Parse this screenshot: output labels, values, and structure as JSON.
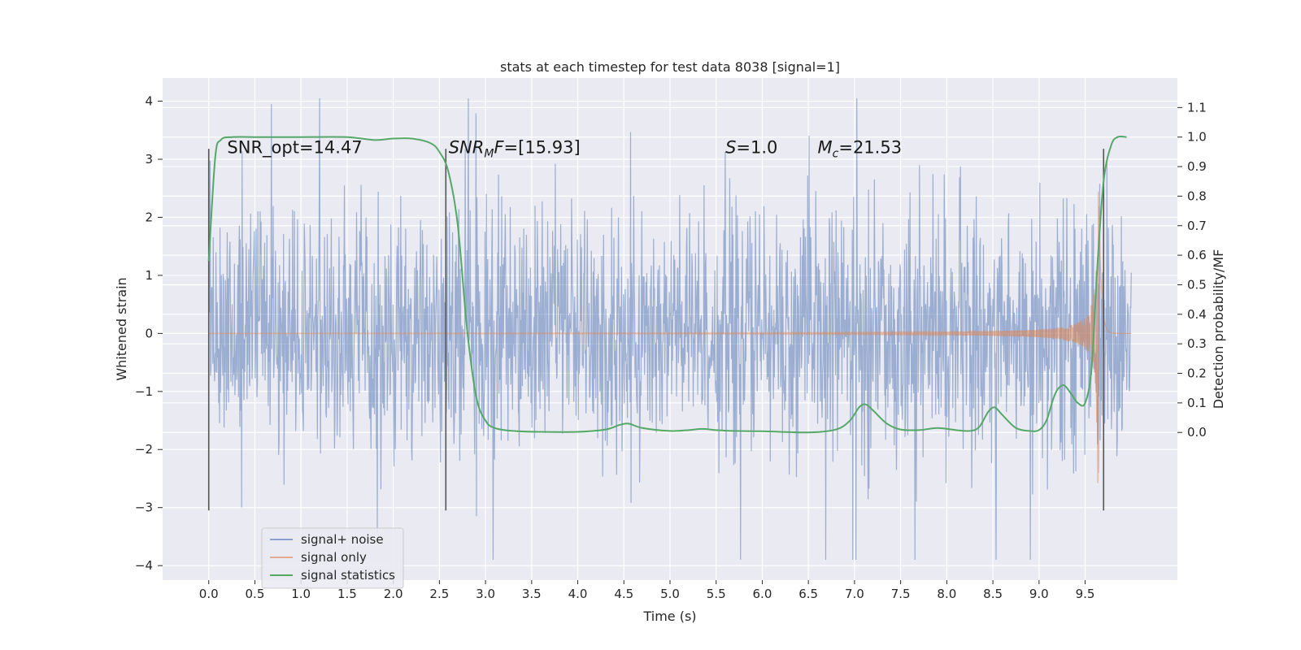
{
  "chart_data": {
    "type": "line",
    "title": "stats at each timestep for test data 8038 [signal=1]",
    "xlabel": "Time (s)",
    "ylabel": "Whitened strain",
    "ylabel_right": "Detection probability/MF",
    "xlim": [
      -0.5,
      10.5
    ],
    "ylim": [
      -4.25,
      4.4
    ],
    "ylim_right": [
      -0.5,
      1.2
    ],
    "grid": true,
    "x_ticks": [
      0.0,
      0.5,
      1.0,
      1.5,
      2.0,
      2.5,
      3.0,
      3.5,
      4.0,
      4.5,
      5.0,
      5.5,
      6.0,
      6.5,
      7.0,
      7.5,
      8.0,
      8.5,
      9.0,
      9.5
    ],
    "x_tick_labels": [
      "0.0",
      "0.5",
      "1.0",
      "1.5",
      "2.0",
      "2.5",
      "3.0",
      "3.5",
      "4.0",
      "4.5",
      "5.0",
      "5.5",
      "6.0",
      "6.5",
      "7.0",
      "7.5",
      "8.0",
      "8.5",
      "9.0",
      "9.5"
    ],
    "y_ticks": [
      -4,
      -3,
      -2,
      -1,
      0,
      1,
      2,
      3,
      4
    ],
    "y_tick_labels": [
      "−4",
      "−3",
      "−2",
      "−1",
      "0",
      "1",
      "2",
      "3",
      "4"
    ],
    "y_right_ticks": [
      0.0,
      0.1,
      0.2,
      0.3,
      0.4,
      0.5,
      0.6,
      0.7,
      0.8,
      0.9,
      1.0,
      1.1
    ],
    "y_right_tick_labels": [
      "0.0",
      "0.1",
      "0.2",
      "0.3",
      "0.4",
      "0.5",
      "0.6",
      "0.7",
      "0.8",
      "0.9",
      "1.0",
      "1.1"
    ],
    "legend_position": "lower-left",
    "series": [
      {
        "name": "signal+ noise",
        "axis": "left",
        "color": "#4c72b0",
        "kind": "noise-trace",
        "x_range": [
          0.0,
          10.0
        ],
        "samples": 2048,
        "amplitude_sigma": 1.0,
        "peak_max": 4.05,
        "peak_min": -3.9
      },
      {
        "name": "signal only",
        "axis": "left",
        "color": "#dd8452",
        "kind": "chirp",
        "x_range": [
          0.0,
          10.0
        ],
        "merger_time": 9.65,
        "peak_amplitude": 2.6
      },
      {
        "name": "signal statistics",
        "axis": "right",
        "color": "#55a868",
        "x": [
          0.0,
          0.07,
          0.13,
          0.25,
          0.5,
          1.0,
          1.5,
          1.8,
          2.0,
          2.2,
          2.4,
          2.5,
          2.6,
          2.7,
          2.8,
          2.9,
          3.0,
          3.1,
          3.3,
          3.6,
          4.0,
          4.3,
          4.45,
          4.55,
          4.7,
          5.0,
          5.2,
          5.35,
          5.5,
          5.7,
          6.0,
          6.5,
          6.8,
          6.95,
          7.05,
          7.12,
          7.2,
          7.35,
          7.5,
          7.7,
          7.9,
          8.1,
          8.25,
          8.35,
          8.45,
          8.52,
          8.6,
          8.75,
          8.9,
          9.0,
          9.08,
          9.15,
          9.2,
          9.27,
          9.35,
          9.42,
          9.5,
          9.57,
          9.63,
          9.7,
          9.78,
          9.85,
          9.95
        ],
        "values": [
          0.58,
          0.93,
          0.99,
          1.0,
          1.0,
          1.0,
          1.0,
          0.99,
          0.995,
          0.995,
          0.98,
          0.95,
          0.88,
          0.7,
          0.35,
          0.12,
          0.04,
          0.015,
          0.005,
          0.002,
          0.002,
          0.01,
          0.025,
          0.03,
          0.015,
          0.005,
          0.008,
          0.012,
          0.008,
          0.005,
          0.004,
          0.0,
          0.01,
          0.04,
          0.085,
          0.095,
          0.075,
          0.03,
          0.01,
          0.008,
          0.015,
          0.008,
          0.005,
          0.018,
          0.07,
          0.085,
          0.06,
          0.015,
          0.005,
          0.008,
          0.04,
          0.11,
          0.145,
          0.16,
          0.13,
          0.1,
          0.1,
          0.22,
          0.55,
          0.85,
          0.97,
          1.0,
          1.0
        ]
      }
    ],
    "vlines": [
      {
        "x": 0.0,
        "y0": -3.05,
        "y1": 3.18,
        "color": "#555555"
      },
      {
        "x": 2.57,
        "y0": -3.05,
        "y1": 3.18,
        "color": "#555555"
      },
      {
        "x": 9.7,
        "y0": -3.05,
        "y1": 3.18,
        "color": "#555555"
      }
    ],
    "annotations": [
      {
        "id": "snr-opt",
        "x": 0.2,
        "y": 3.2,
        "text": "SNR_opt=14.47"
      },
      {
        "id": "snr-mf",
        "x": 2.6,
        "y": 3.2,
        "text": "=[15.93]",
        "math_main": "SNR",
        "math_sub": "M",
        "math_tail": "F"
      },
      {
        "id": "s-value",
        "x": 5.6,
        "y": 3.2,
        "text": "=1.0",
        "math_main": "S"
      },
      {
        "id": "mc-value",
        "x": 6.6,
        "y": 3.2,
        "text": "=21.53",
        "math_main": "M",
        "math_sub": "c"
      }
    ]
  }
}
